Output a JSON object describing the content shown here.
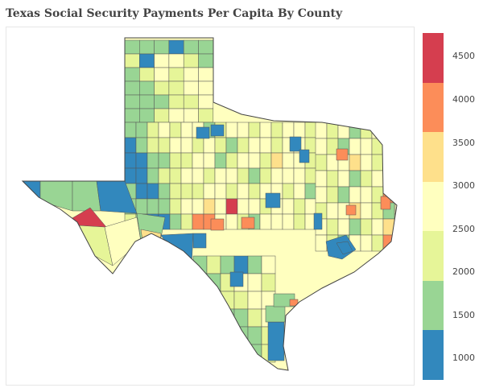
{
  "title": "Texas Social Security Payments Per Capita By County",
  "colorscale": {
    "bins": [
      {
        "min": 750,
        "max": 1325,
        "color": "#3288bd"
      },
      {
        "min": 1325,
        "max": 1900,
        "color": "#99d594"
      },
      {
        "min": 1900,
        "max": 2475,
        "color": "#e6f598"
      },
      {
        "min": 2475,
        "max": 3050,
        "color": "#ffffbf"
      },
      {
        "min": 3050,
        "max": 3625,
        "color": "#fee08b"
      },
      {
        "min": 3625,
        "max": 4200,
        "color": "#fc8d59"
      },
      {
        "min": 4200,
        "max": 4775,
        "color": "#d53e4f"
      }
    ],
    "ticks": [
      "1000",
      "1500",
      "2000",
      "2500",
      "3000",
      "3500",
      "4000",
      "4500"
    ],
    "range": [
      750,
      4775
    ]
  },
  "map": {
    "region": "Texas",
    "border_color": "#444444"
  }
}
